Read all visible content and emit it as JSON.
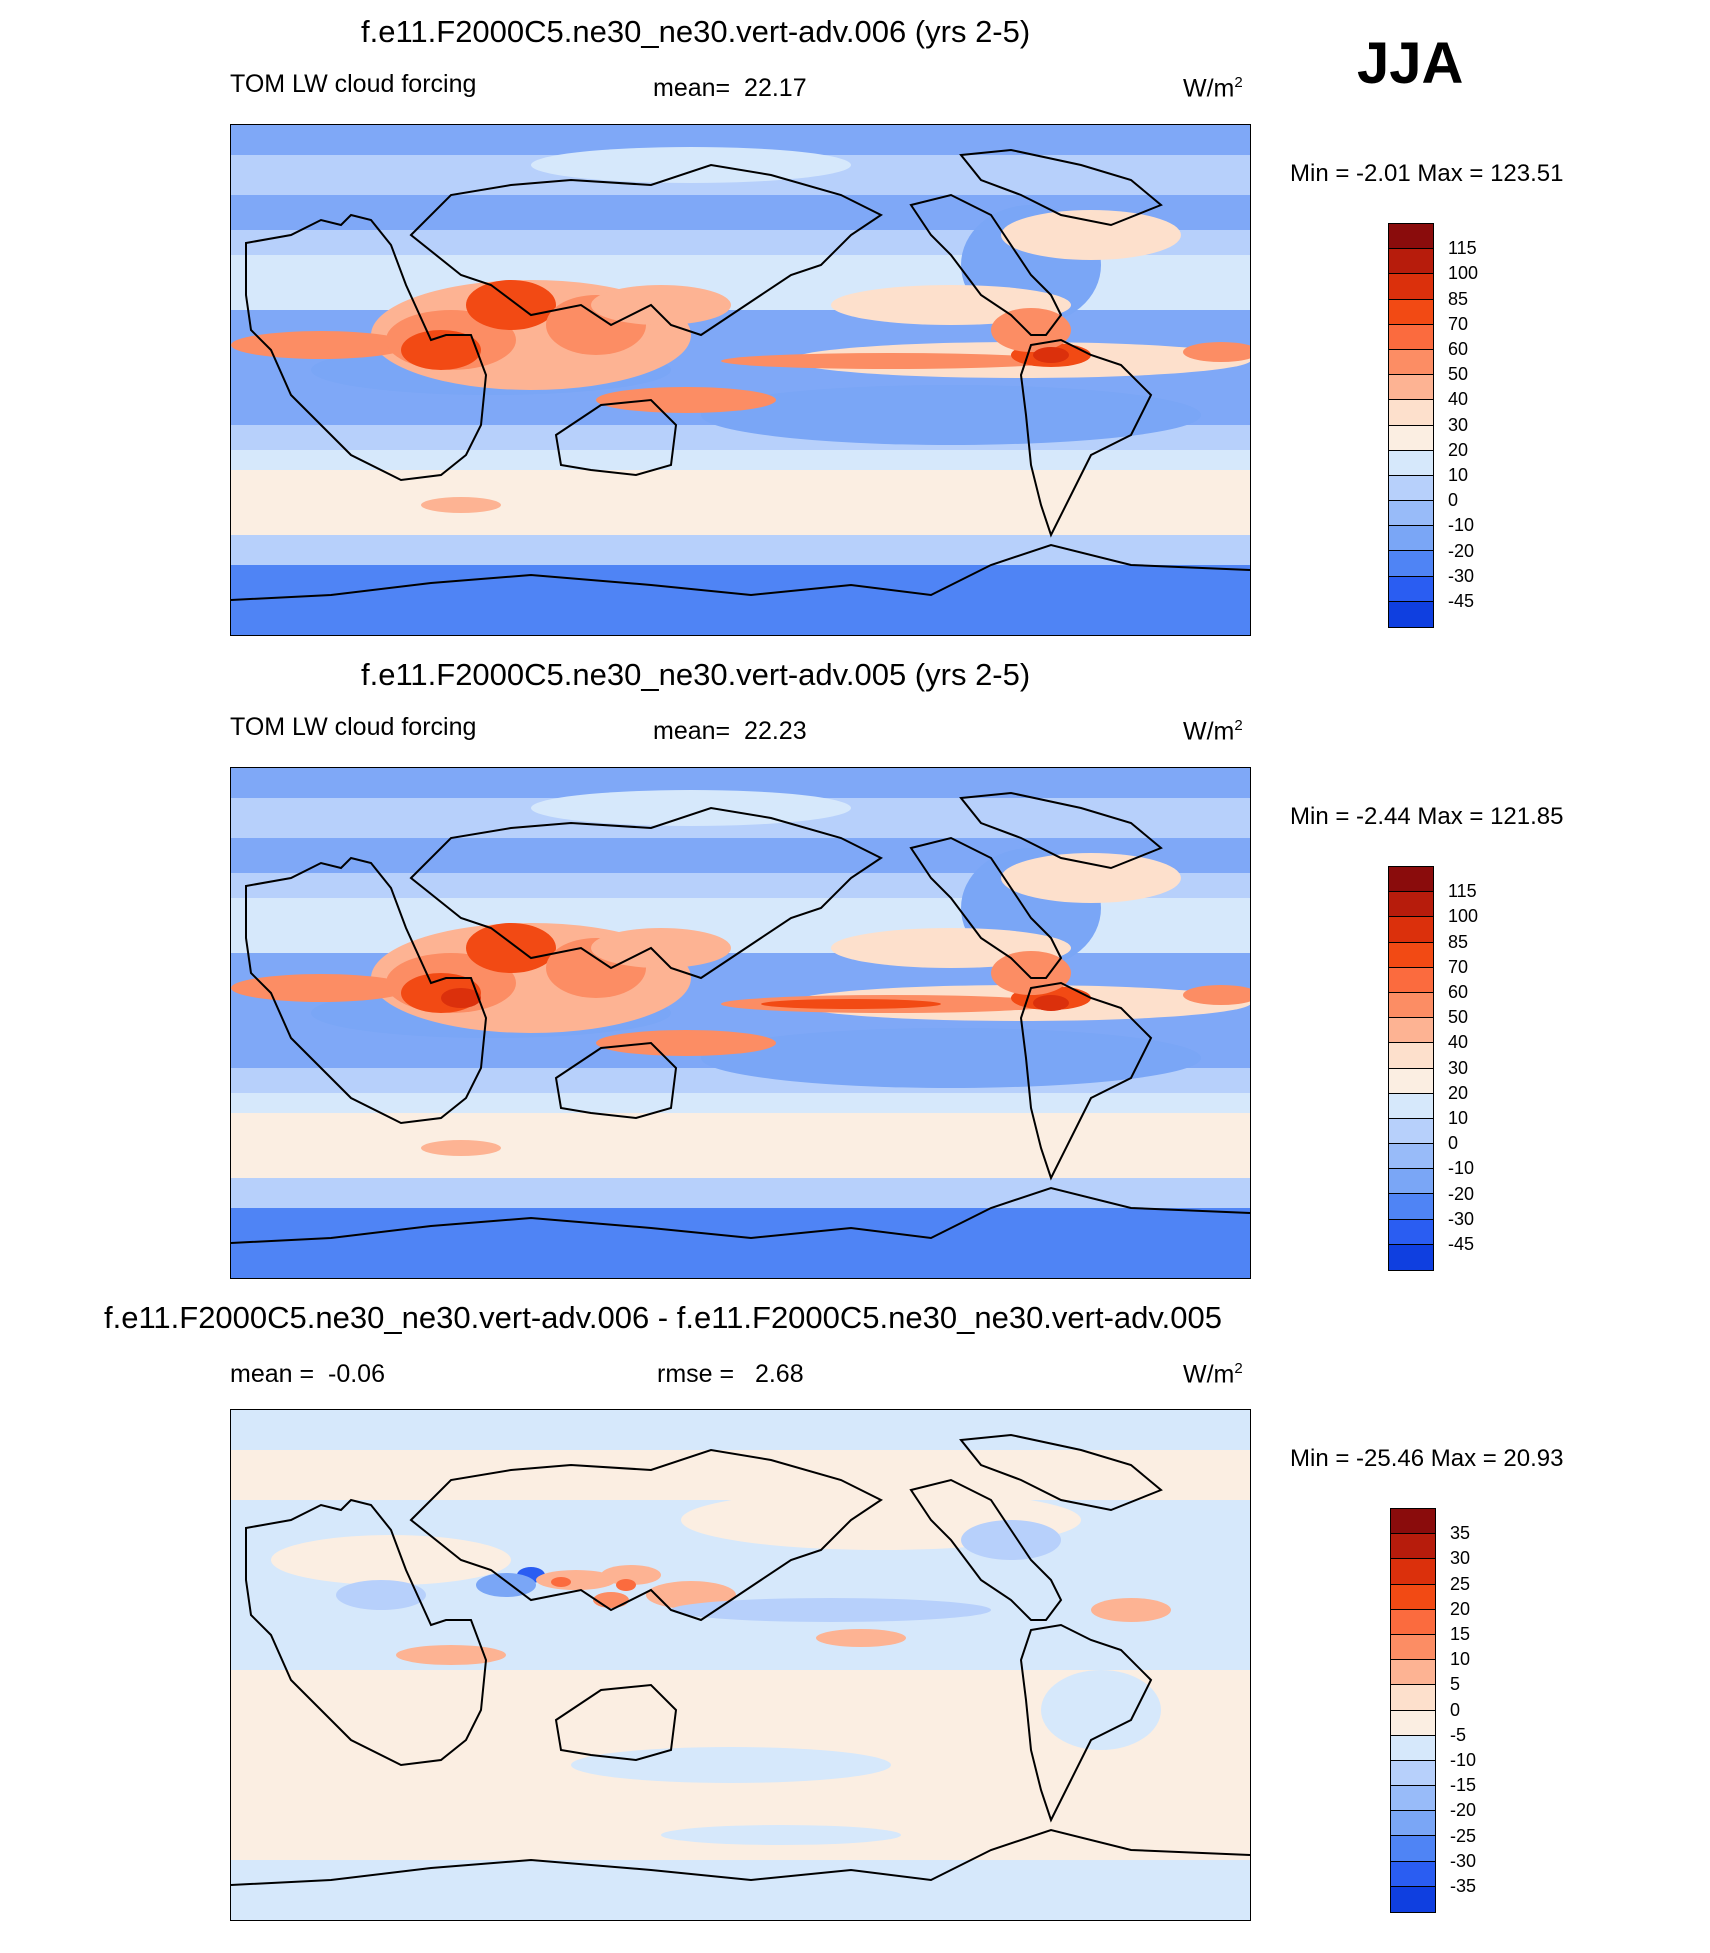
{
  "season": "JJA",
  "units_base": "W/m",
  "units_exp": "2",
  "panels": [
    {
      "title": "f.e11.F2000C5.ne30_ne30.vert-adv.006 (yrs 2-5)",
      "variable": "TOM LW cloud forcing",
      "stat_label": "mean=",
      "stat_value": "22.17",
      "minmax": "Min =  -2.01 Max = 123.51"
    },
    {
      "title": "f.e11.F2000C5.ne30_ne30.vert-adv.005 (yrs 2-5)",
      "variable": "TOM LW cloud forcing",
      "stat_label": "mean=",
      "stat_value": "22.23",
      "minmax": "Min =  -2.44 Max = 121.85"
    },
    {
      "title": "f.e11.F2000C5.ne30_ne30.vert-adv.006 - f.e11.F2000C5.ne30_ne30.vert-adv.005",
      "stat_label": "mean =",
      "stat_value": "-0.06",
      "stat2_label": "rmse =",
      "stat2_value": "2.68",
      "minmax": "Min = -25.46 Max =  20.93"
    }
  ],
  "chart_data": [
    {
      "type": "heatmap",
      "title": "f.e11.F2000C5.ne30_ne30.vert-adv.006 (yrs 2-5)",
      "variable": "TOM LW cloud forcing",
      "mean": 22.17,
      "min": -2.01,
      "max": 123.51,
      "units": "W/m2",
      "colorbar_levels": [
        115,
        100,
        85,
        70,
        60,
        50,
        40,
        30,
        20,
        10,
        0,
        -10,
        -20,
        -30,
        -45
      ],
      "colorbar_colors": [
        "#8a0c0c",
        "#b71c0c",
        "#db300c",
        "#f24a14",
        "#fb6b3e",
        "#fc8d64",
        "#fdb393",
        "#fde0cc",
        "#fbeee2",
        "#d6e8fb",
        "#b7d0fb",
        "#98bbf9",
        "#7aa6f6",
        "#4f84f5",
        "#2a5df2",
        "#0f3fe0",
        "#0a28b4",
        "#061a80"
      ]
    },
    {
      "type": "heatmap",
      "title": "f.e11.F2000C5.ne30_ne30.vert-adv.005 (yrs 2-5)",
      "variable": "TOM LW cloud forcing",
      "mean": 22.23,
      "min": -2.44,
      "max": 121.85,
      "units": "W/m2",
      "colorbar_levels": [
        115,
        100,
        85,
        70,
        60,
        50,
        40,
        30,
        20,
        10,
        0,
        -10,
        -20,
        -30,
        -45
      ],
      "colorbar_colors": [
        "#8a0c0c",
        "#b71c0c",
        "#db300c",
        "#f24a14",
        "#fb6b3e",
        "#fc8d64",
        "#fdb393",
        "#fde0cc",
        "#fbeee2",
        "#d6e8fb",
        "#b7d0fb",
        "#98bbf9",
        "#7aa6f6",
        "#4f84f5",
        "#2a5df2",
        "#0f3fe0",
        "#0a28b4",
        "#061a80"
      ]
    },
    {
      "type": "heatmap",
      "title": "f.e11.F2000C5.ne30_ne30.vert-adv.006 - f.e11.F2000C5.ne30_ne30.vert-adv.005",
      "mean": -0.06,
      "rmse": 2.68,
      "min": -25.46,
      "max": 20.93,
      "units": "W/m2",
      "colorbar_levels": [
        35,
        30,
        25,
        20,
        15,
        10,
        5,
        0,
        -5,
        -10,
        -15,
        -20,
        -25,
        -30,
        -35
      ],
      "colorbar_colors": [
        "#8a0c0c",
        "#b71c0c",
        "#db300c",
        "#f24a14",
        "#fb6b3e",
        "#fc8d64",
        "#fdb393",
        "#fde0cc",
        "#fbeee2",
        "#d6e8fb",
        "#b7d0fb",
        "#98bbf9",
        "#7aa6f6",
        "#4f84f5",
        "#2a5df2",
        "#0f3fe0",
        "#0a28b4",
        "#061a80"
      ]
    }
  ]
}
